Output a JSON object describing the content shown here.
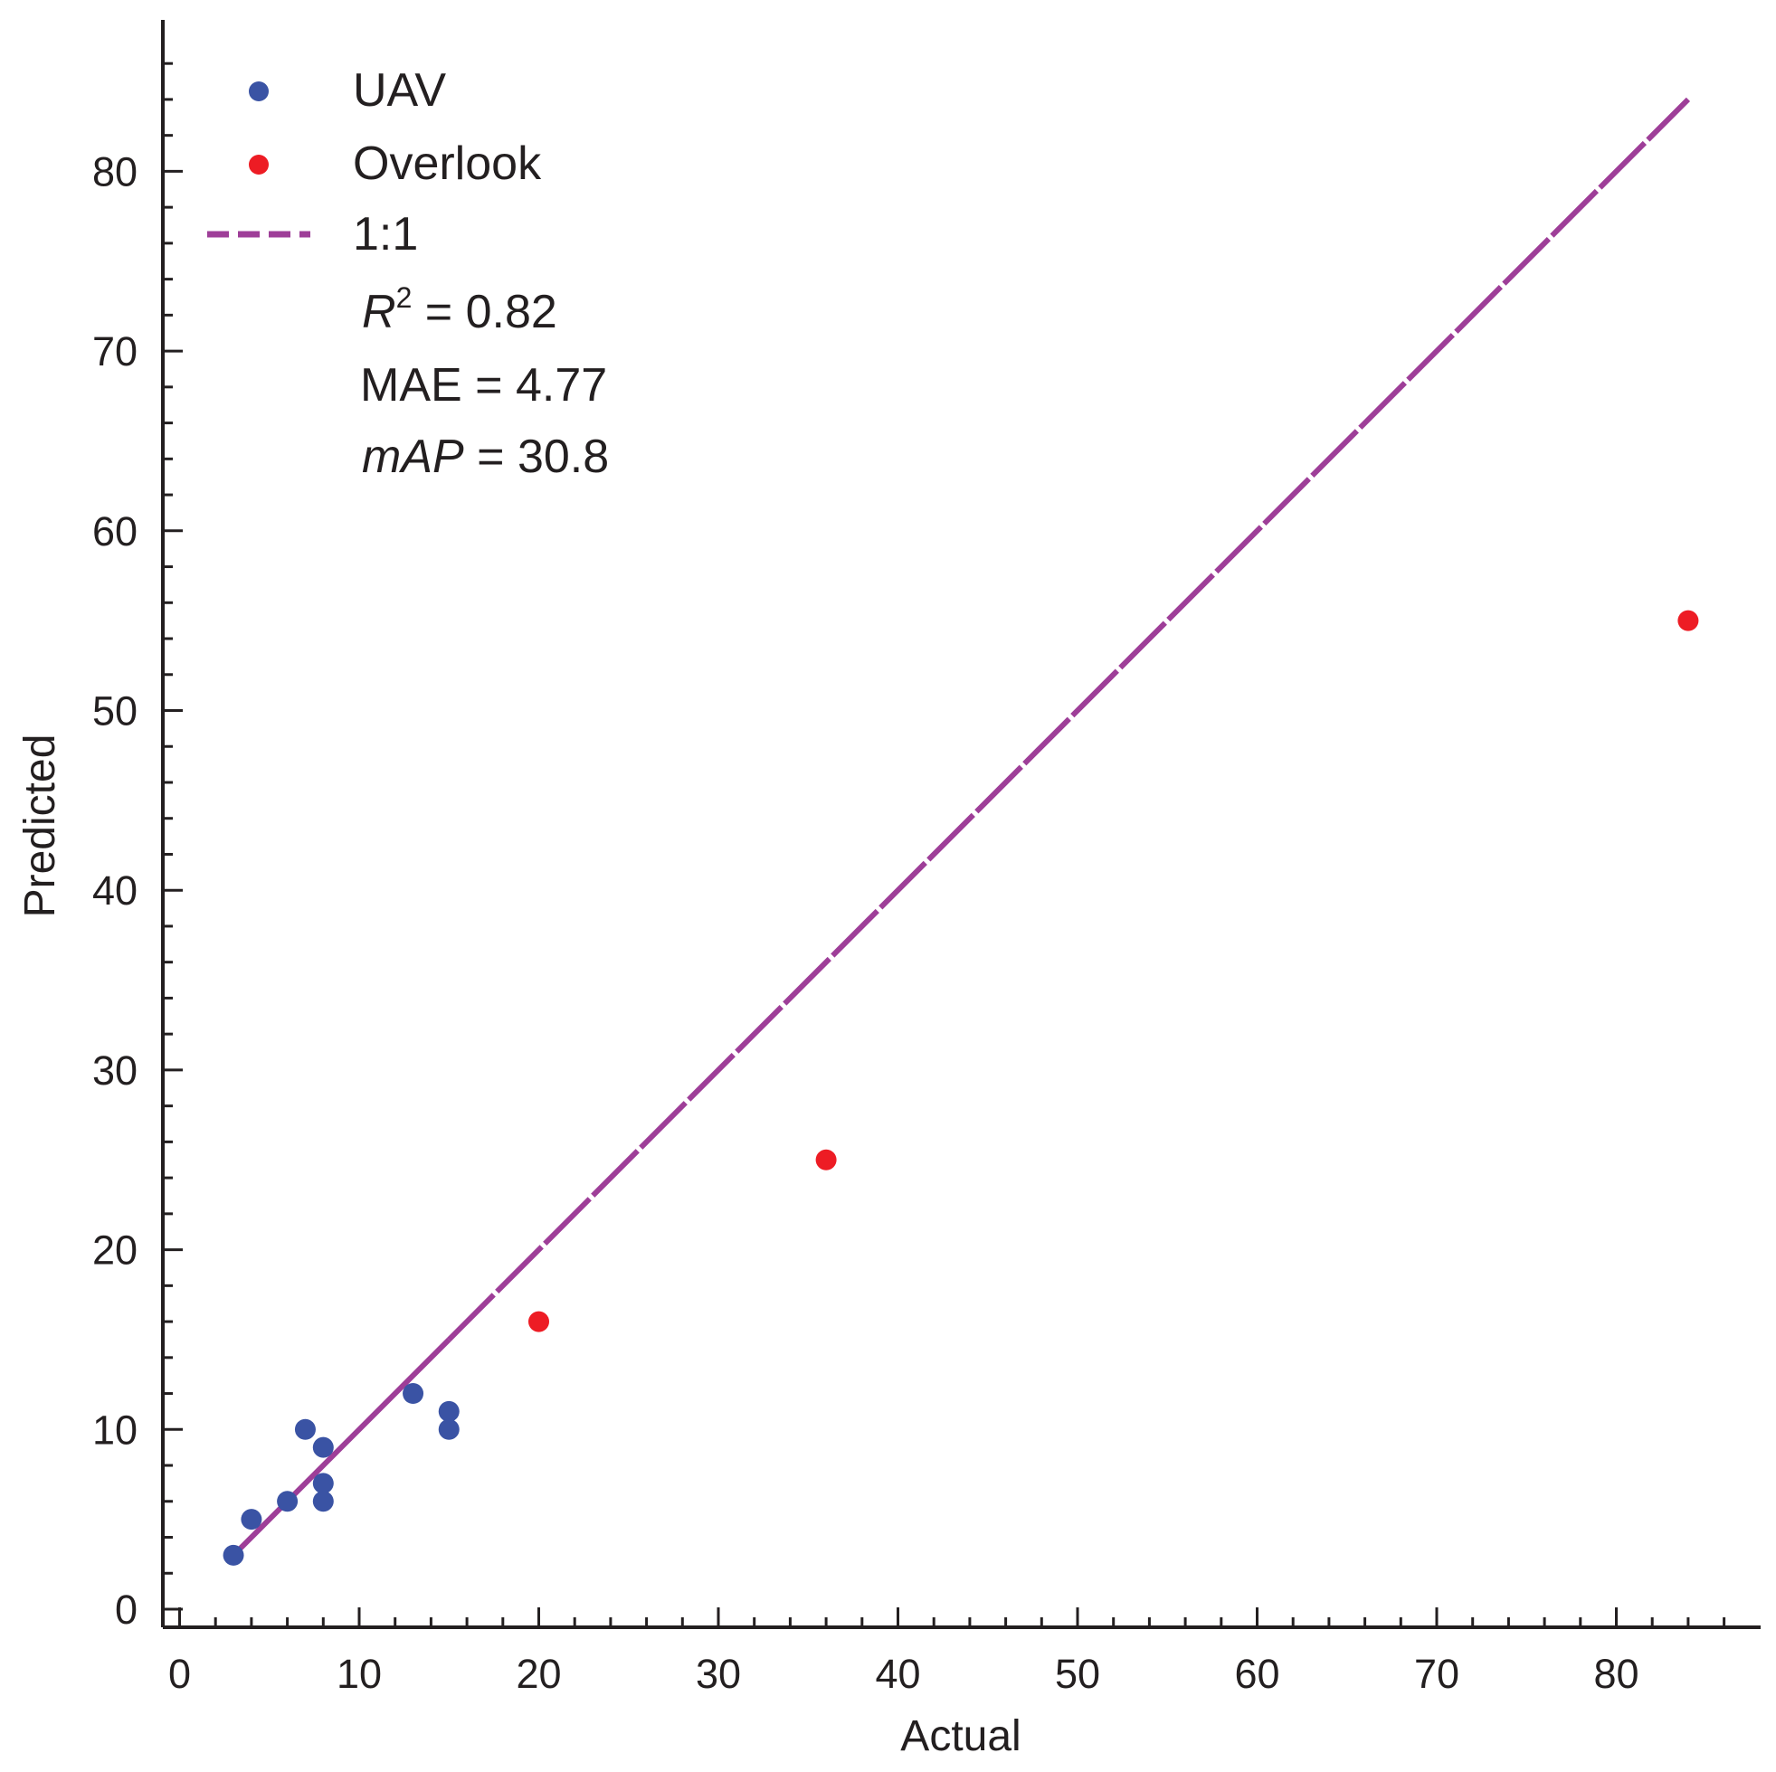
{
  "chart_data": {
    "type": "scatter",
    "xlabel": "Actual",
    "ylabel": "Predicted",
    "xlim": [
      -1,
      88
    ],
    "ylim": [
      -1,
      88
    ],
    "xticks": [
      0,
      10,
      20,
      30,
      40,
      50,
      60,
      70,
      80
    ],
    "yticks": [
      0,
      10,
      20,
      30,
      40,
      50,
      60,
      70,
      80
    ],
    "xtick_labels": [
      "0",
      "10",
      "20",
      "30",
      "40",
      "50",
      "60",
      "70",
      "80"
    ],
    "ytick_labels": [
      "0",
      "10",
      "20",
      "30",
      "40",
      "50",
      "60",
      "70",
      "80"
    ],
    "minor_tick_step": 2,
    "grid": false,
    "legend_position": "top-left",
    "series": [
      {
        "name": "UAV",
        "kind": "scatter",
        "color": "#3a53a4",
        "points": [
          [
            3,
            3
          ],
          [
            4,
            5
          ],
          [
            6,
            6
          ],
          [
            7,
            10
          ],
          [
            8,
            9
          ],
          [
            8,
            7
          ],
          [
            8,
            6
          ],
          [
            13,
            12
          ],
          [
            15,
            11
          ],
          [
            15,
            10
          ]
        ]
      },
      {
        "name": "Overlook",
        "kind": "scatter",
        "color": "#ed1c24",
        "points": [
          [
            20,
            16
          ],
          [
            36,
            25
          ],
          [
            84,
            55
          ]
        ]
      },
      {
        "name": "1:1",
        "kind": "line",
        "dashed": true,
        "color": "#9e3e98",
        "points": [
          [
            3,
            3
          ],
          [
            84,
            84
          ]
        ]
      }
    ],
    "annotations": {
      "r2": {
        "symbol": "R",
        "superscript": "2",
        "text": " = 0.82"
      },
      "mae": {
        "text": "MAE = 4.77"
      },
      "map": {
        "symbol": "mAP",
        "text": " = 30.8"
      }
    }
  }
}
